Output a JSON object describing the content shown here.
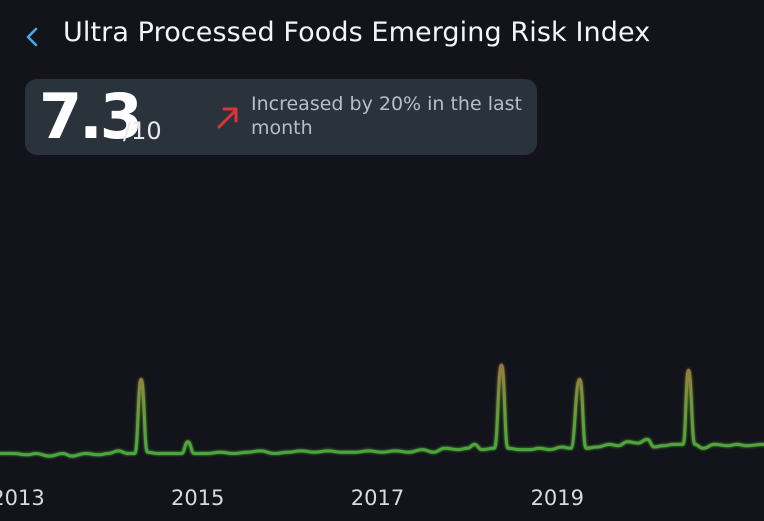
{
  "header": {
    "back_icon": "chevron-left-icon",
    "title": "Ultra Processed Foods Emerging Risk Index"
  },
  "score": {
    "value": "7.3",
    "max": "/10",
    "trend_icon": "arrow-up-right-icon",
    "trend_text": "Increased by 20% in the last month"
  },
  "colors": {
    "background": "#13141b",
    "card": "#2a323c",
    "accent_back": "#4aa8e6",
    "trend_up": "#d9343b",
    "line_low": "#49a83a",
    "line_high": "#9a7a3d"
  },
  "chart_data": {
    "type": "line",
    "title": "",
    "xlabel": "",
    "ylabel": "",
    "x_range": [
      2012.8,
      2021.3
    ],
    "ylim": [
      0,
      1
    ],
    "xticks": [
      2013,
      2015,
      2017,
      2019
    ],
    "tick_labels": [
      "2013",
      "2015",
      "2017",
      "2019"
    ],
    "grid": false,
    "series": [
      {
        "name": "Emerging Risk Index",
        "points": [
          [
            2012.8,
            0.05
          ],
          [
            2012.95,
            0.05
          ],
          [
            2013.1,
            0.04
          ],
          [
            2013.2,
            0.05
          ],
          [
            2013.35,
            0.03
          ],
          [
            2013.5,
            0.05
          ],
          [
            2013.6,
            0.03
          ],
          [
            2013.75,
            0.05
          ],
          [
            2013.9,
            0.04
          ],
          [
            2014.0,
            0.05
          ],
          [
            2014.12,
            0.07
          ],
          [
            2014.22,
            0.05
          ],
          [
            2014.3,
            0.05
          ],
          [
            2014.37,
            0.62
          ],
          [
            2014.44,
            0.06
          ],
          [
            2014.55,
            0.05
          ],
          [
            2014.7,
            0.05
          ],
          [
            2014.82,
            0.05
          ],
          [
            2014.89,
            0.14
          ],
          [
            2014.96,
            0.05
          ],
          [
            2015.1,
            0.05
          ],
          [
            2015.25,
            0.06
          ],
          [
            2015.4,
            0.05
          ],
          [
            2015.55,
            0.06
          ],
          [
            2015.7,
            0.07
          ],
          [
            2015.85,
            0.05
          ],
          [
            2016.0,
            0.06
          ],
          [
            2016.15,
            0.07
          ],
          [
            2016.3,
            0.06
          ],
          [
            2016.45,
            0.07
          ],
          [
            2016.6,
            0.06
          ],
          [
            2016.75,
            0.06
          ],
          [
            2016.9,
            0.07
          ],
          [
            2017.05,
            0.06
          ],
          [
            2017.2,
            0.07
          ],
          [
            2017.35,
            0.06
          ],
          [
            2017.5,
            0.08
          ],
          [
            2017.62,
            0.06
          ],
          [
            2017.75,
            0.09
          ],
          [
            2017.9,
            0.08
          ],
          [
            2018.0,
            0.09
          ],
          [
            2018.08,
            0.12
          ],
          [
            2018.16,
            0.08
          ],
          [
            2018.3,
            0.09
          ],
          [
            2018.38,
            0.73
          ],
          [
            2018.45,
            0.09
          ],
          [
            2018.58,
            0.08
          ],
          [
            2018.7,
            0.08
          ],
          [
            2018.8,
            0.09
          ],
          [
            2018.92,
            0.08
          ],
          [
            2019.05,
            0.1
          ],
          [
            2019.15,
            0.09
          ],
          [
            2019.25,
            0.62
          ],
          [
            2019.32,
            0.09
          ],
          [
            2019.45,
            0.1
          ],
          [
            2019.58,
            0.12
          ],
          [
            2019.68,
            0.11
          ],
          [
            2019.78,
            0.14
          ],
          [
            2019.9,
            0.13
          ],
          [
            2020.0,
            0.16
          ],
          [
            2020.08,
            0.1
          ],
          [
            2020.18,
            0.11
          ],
          [
            2020.3,
            0.12
          ],
          [
            2020.4,
            0.12
          ],
          [
            2020.46,
            0.69
          ],
          [
            2020.53,
            0.12
          ],
          [
            2020.62,
            0.09
          ],
          [
            2020.75,
            0.12
          ],
          [
            2020.9,
            0.11
          ],
          [
            2021.0,
            0.12
          ],
          [
            2021.1,
            0.11
          ],
          [
            2021.3,
            0.12
          ]
        ]
      }
    ]
  }
}
